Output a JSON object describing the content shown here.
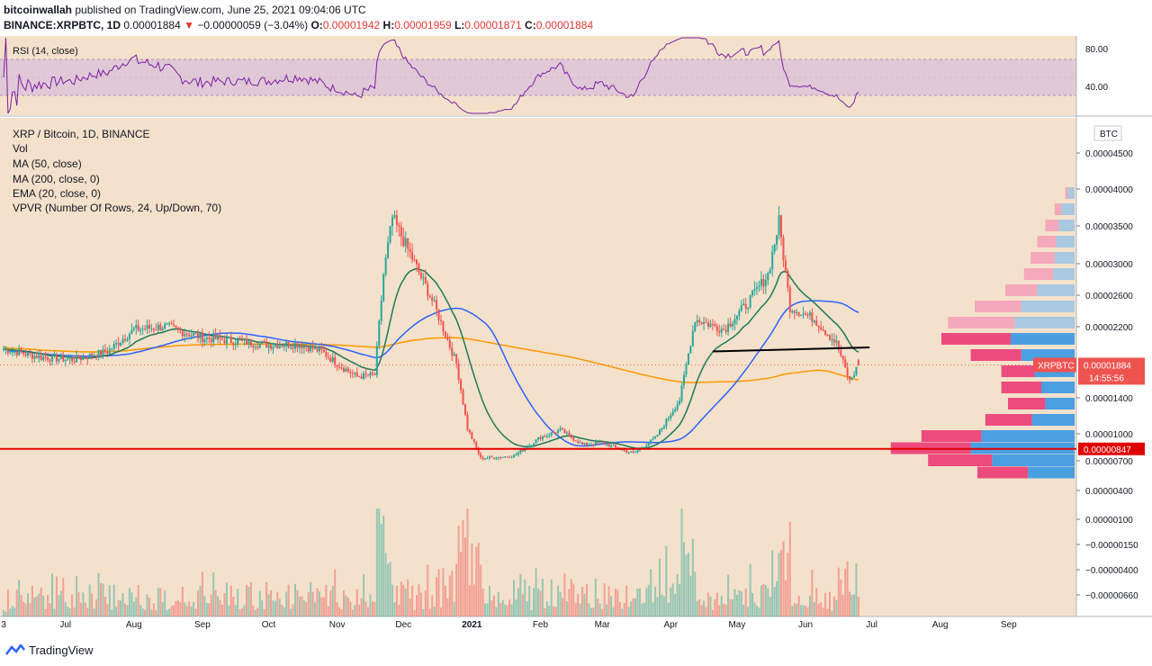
{
  "header": {
    "author": "bitcoinwallah",
    "published_text": "published on TradingView.com, June 25, 2021 09:04:06 UTC",
    "symbol": "BINANCE:XRPBTC, 1D",
    "last": "0.00001884",
    "change_arrow": "▼",
    "change": "−0.00000059 (−3.04%)",
    "o_label": "O:",
    "o_value": "0.00001942",
    "h_label": "H:",
    "h_value": "0.00001959",
    "l_label": "L:",
    "l_value": "0.00001871",
    "c_label": "C:",
    "c_value": "0.00001884"
  },
  "rsi_panel": {
    "title": "RSI (14, close)",
    "ticks": [
      "80.00",
      "40.00"
    ]
  },
  "legend": {
    "title": "XRP / Bitcoin, 1D, BINANCE",
    "vol": "Vol",
    "ma50": "MA (50, close)",
    "ma200": "MA (200, close, 0)",
    "ema20": "EMA (20, close, 0)",
    "vpvr": "VPVR (Number Of Rows, 24, Up/Down, 70)"
  },
  "price_axis": {
    "currency": "BTC",
    "ticks": [
      "0.00004500",
      "0.00004000",
      "0.00003500",
      "0.00003000",
      "0.00002600",
      "0.00002200",
      "0.00001400",
      "0.00001000",
      "0.00000700",
      "0.00000400",
      "0.00000100",
      "−0.00000150",
      "−0.00000400",
      "−0.00000660"
    ],
    "current_label": "XRPBTC",
    "current_value": "0.00001884",
    "countdown": "14:55:56",
    "support_value": "0.00000847"
  },
  "time_axis": {
    "labels": [
      "3",
      "Jul",
      "Aug",
      "Sep",
      "Oct",
      "Nov",
      "Dec",
      "2021",
      "Feb",
      "Mar",
      "Apr",
      "May",
      "Jun",
      "Jul",
      "Aug",
      "Sep"
    ]
  },
  "footer": {
    "brand": "TradingView"
  },
  "colors": {
    "background": "#f4e1cb",
    "up": "#26a69a",
    "down": "#ef5350",
    "ma50": "#2962ff",
    "ma200": "#ff9800",
    "ema20": "#1b7a5a",
    "rsi": "#7b1fa2",
    "rsi_band": "#d9c1e0",
    "support": "#e00000",
    "trendline": "#000000",
    "vp_up": "#4a9fe3",
    "vp_down": "#ec4b7d",
    "vp_up_light": "#a9c9e0",
    "vp_down_light": "#f4a8bb"
  },
  "chart_data": {
    "type": "candlestick",
    "symbol": "XRP / Bitcoin",
    "interval": "1D",
    "exchange": "BINANCE",
    "x_range": [
      "2020-06-03",
      "2021-09-30"
    ],
    "y_unit": "BTC",
    "last_close": 1.884e-05,
    "ohlc_last": {
      "open": 1.942e-05,
      "high": 1.959e-05,
      "low": 1.871e-05,
      "close": 1.884e-05
    },
    "support_level": 8.47e-06,
    "trendline": {
      "from": [
        "2021-04-20",
        2.05e-05
      ],
      "to": [
        "2021-06-30",
        2.1e-05
      ]
    },
    "price_path": [
      [
        "2020-06-03",
        2.08e-05
      ],
      [
        "2020-06-20",
        1.98e-05
      ],
      [
        "2020-07-05",
        1.95e-05
      ],
      [
        "2020-07-20",
        2.05e-05
      ],
      [
        "2020-08-01",
        2.32e-05
      ],
      [
        "2020-08-15",
        2.36e-05
      ],
      [
        "2020-09-01",
        2.22e-05
      ],
      [
        "2020-09-15",
        2.18e-05
      ],
      [
        "2020-10-01",
        2.13e-05
      ],
      [
        "2020-10-15",
        2.14e-05
      ],
      [
        "2020-10-25",
        2.05e-05
      ],
      [
        "2020-11-01",
        1.9e-05
      ],
      [
        "2020-11-10",
        1.74e-05
      ],
      [
        "2020-11-18",
        1.76e-05
      ],
      [
        "2020-11-22",
        3e-05
      ],
      [
        "2020-11-26",
        3.7e-05
      ],
      [
        "2020-12-05",
        3.2e-05
      ],
      [
        "2020-12-15",
        2.62e-05
      ],
      [
        "2020-12-25",
        1.9e-05
      ],
      [
        "2020-12-30",
        1.1e-05
      ],
      [
        "2021-01-05",
        7.3e-06
      ],
      [
        "2021-01-20",
        7.6e-06
      ],
      [
        "2021-02-01",
        9.9e-06
      ],
      [
        "2021-02-10",
        1.08e-05
      ],
      [
        "2021-02-20",
        9e-06
      ],
      [
        "2021-03-01",
        9.2e-06
      ],
      [
        "2021-03-15",
        7.9e-06
      ],
      [
        "2021-03-25",
        9.8e-06
      ],
      [
        "2021-04-05",
        1.45e-05
      ],
      [
        "2021-04-12",
        2.45e-05
      ],
      [
        "2021-04-25",
        2.32e-05
      ],
      [
        "2021-05-05",
        2.62e-05
      ],
      [
        "2021-05-15",
        3e-05
      ],
      [
        "2021-05-20",
        3.65e-05
      ],
      [
        "2021-05-25",
        2.6e-05
      ],
      [
        "2021-06-05",
        2.45e-05
      ],
      [
        "2021-06-15",
        2.15e-05
      ],
      [
        "2021-06-21",
        1.68e-05
      ],
      [
        "2021-06-25",
        1.884e-05
      ]
    ],
    "rsi_range": [
      20,
      90
    ],
    "rsi_bands": [
      30,
      70
    ],
    "volume_profile": [
      {
        "price": 4e-05,
        "up": 0.05,
        "down": 0.02
      },
      {
        "price": 3.8e-05,
        "up": 0.1,
        "down": 0.05
      },
      {
        "price": 3.6e-05,
        "up": 0.12,
        "down": 0.1
      },
      {
        "price": 3.4e-05,
        "up": 0.14,
        "down": 0.14
      },
      {
        "price": 3.2e-05,
        "up": 0.15,
        "down": 0.18
      },
      {
        "price": 3e-05,
        "up": 0.16,
        "down": 0.22
      },
      {
        "price": 2.8e-05,
        "up": 0.28,
        "down": 0.24
      },
      {
        "price": 2.6e-05,
        "up": 0.4,
        "down": 0.35
      },
      {
        "price": 2.4e-05,
        "up": 0.45,
        "down": 0.5
      },
      {
        "price": 2.2e-05,
        "up": 0.48,
        "down": 0.52
      },
      {
        "price": 2e-05,
        "up": 0.4,
        "down": 0.38
      },
      {
        "price": 1.8e-05,
        "up": 0.3,
        "down": 0.25
      },
      {
        "price": 1.6e-05,
        "up": 0.25,
        "down": 0.3
      },
      {
        "price": 1.4e-05,
        "up": 0.22,
        "down": 0.28
      },
      {
        "price": 1.2e-05,
        "up": 0.32,
        "down": 0.35
      },
      {
        "price": 1e-05,
        "up": 0.7,
        "down": 0.45
      },
      {
        "price": 8.5e-06,
        "up": 0.78,
        "down": 0.6
      },
      {
        "price": 7e-06,
        "up": 0.62,
        "down": 0.48
      },
      {
        "price": 5.5e-06,
        "up": 0.35,
        "down": 0.38
      }
    ]
  }
}
